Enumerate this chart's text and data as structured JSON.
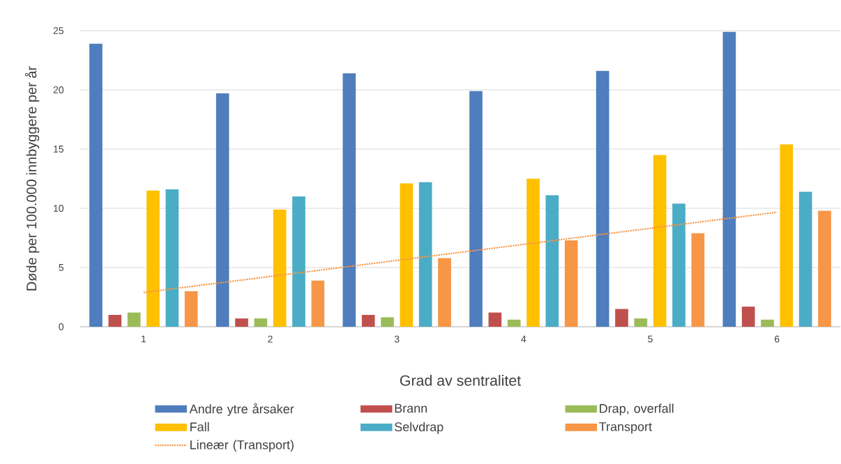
{
  "chart_data": {
    "type": "bar",
    "xlabel": "Grad av sentralitet",
    "ylabel": "Døde per 100.000 innbyggere per år",
    "x": [
      1,
      2,
      3,
      4,
      5,
      6
    ],
    "xlim": [
      0.5,
      6.5
    ],
    "xticks": [
      1,
      2,
      3,
      4,
      5,
      6
    ],
    "ylim": [
      0,
      25
    ],
    "yticks": [
      0,
      5,
      10,
      15,
      20,
      25
    ],
    "grid": "y",
    "legend": "bottom",
    "series": [
      {
        "name": "Andre ytre årsaker",
        "color": "#4f7dbd",
        "values": [
          23.9,
          19.7,
          21.4,
          19.9,
          21.6,
          24.9
        ]
      },
      {
        "name": "Brann",
        "color": "#c0504d",
        "values": [
          1.0,
          0.7,
          1.0,
          1.2,
          1.5,
          1.7
        ]
      },
      {
        "name": "Drap, overfall",
        "color": "#9bbb59",
        "values": [
          1.2,
          0.7,
          0.8,
          0.6,
          0.7,
          0.6
        ]
      },
      {
        "name": "Fall",
        "color": "#ffc000",
        "values": [
          11.5,
          9.9,
          12.1,
          12.5,
          14.5,
          15.4
        ]
      },
      {
        "name": "Selvdrap",
        "color": "#4bacc6",
        "values": [
          11.6,
          11.0,
          12.2,
          11.1,
          10.4,
          11.4
        ]
      },
      {
        "name": "Transport",
        "color": "#f79646",
        "values": [
          3.0,
          3.9,
          5.8,
          7.3,
          7.9,
          9.8
        ]
      },
      {
        "name": "Lineær (Transport)",
        "type": "line",
        "color": "#f79646",
        "x": [
          1,
          6
        ],
        "values": [
          2.89,
          9.67
        ],
        "line_style": "dotted",
        "marker": "none"
      }
    ]
  }
}
